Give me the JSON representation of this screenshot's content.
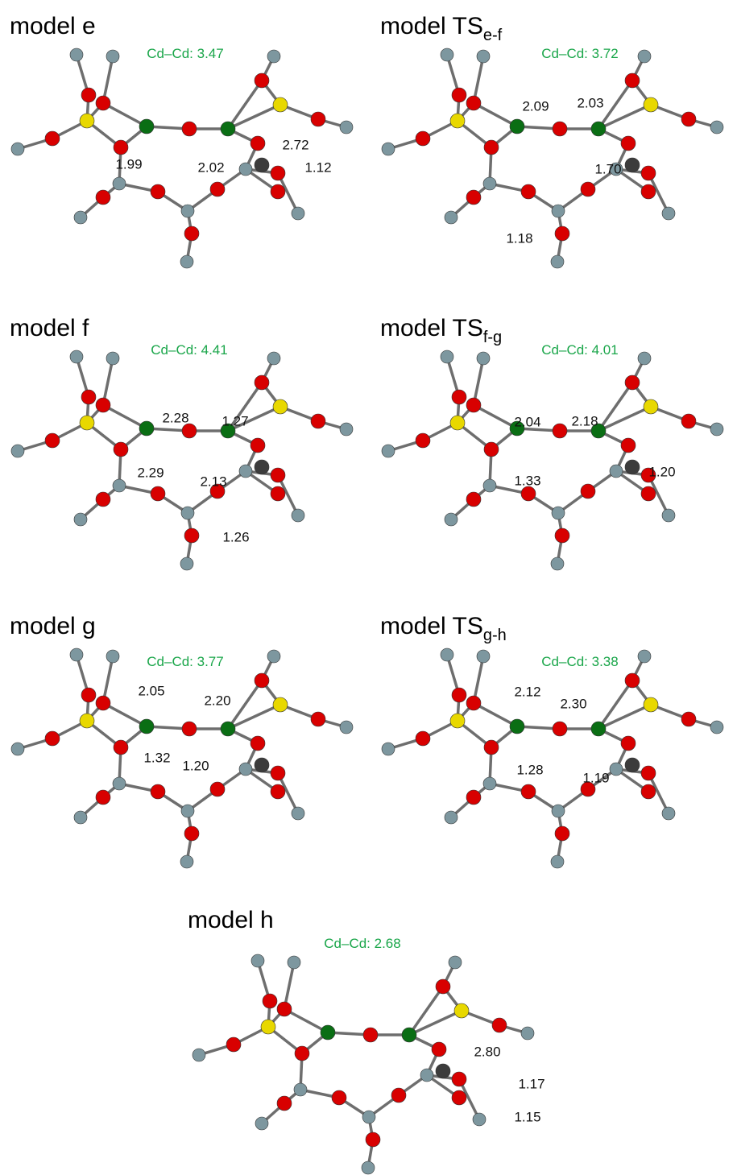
{
  "panels": [
    {
      "title": "model e",
      "cd_cd": "Cd–Cd: 3.47",
      "bond_lengths": [
        "1.99",
        "2.02",
        "2.72",
        "1.12"
      ]
    },
    {
      "title": "model TS",
      "subscript": "e-f",
      "cd_cd": "Cd–Cd: 3.72",
      "bond_lengths": [
        "2.09",
        "2.03",
        "1.70",
        "1.18"
      ]
    },
    {
      "title": "model f",
      "cd_cd": "Cd–Cd: 4.41",
      "bond_lengths": [
        "2.28",
        "1.27",
        "2.29",
        "2.13",
        "1.26"
      ]
    },
    {
      "title": "model TS",
      "subscript": "f-g",
      "cd_cd": "Cd–Cd: 4.01",
      "bond_lengths": [
        "2.04",
        "2.18",
        "1.33",
        "1.20"
      ]
    },
    {
      "title": "model g",
      "cd_cd": "Cd–Cd: 3.77",
      "bond_lengths": [
        "2.05",
        "2.20",
        "1.32",
        "1.20"
      ]
    },
    {
      "title": "model TS",
      "subscript": "g-h",
      "cd_cd": "Cd–Cd: 3.38",
      "bond_lengths": [
        "2.12",
        "2.30",
        "1.28",
        "1.19"
      ]
    },
    {
      "title": "model h",
      "cd_cd": "Cd–Cd: 2.68",
      "bond_lengths": [
        "2.80",
        "1.17",
        "1.15"
      ]
    }
  ]
}
